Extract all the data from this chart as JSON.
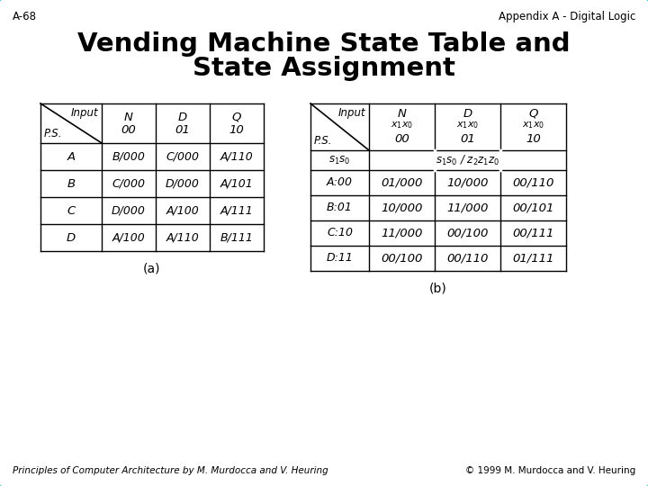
{
  "title_line1": "Vending Machine State Table and",
  "title_line2": "State Assignment",
  "header_left": "A-68",
  "header_right": "Appendix A - Digital Logic",
  "footer_left": "Principles of Computer Architecture by M. Murdocca and V. Heuring",
  "footer_right": "© 1999 M. Murdocca and V. Heuring",
  "table_a_label": "(a)",
  "table_b_label": "(b)",
  "bg_color": "#ffffff",
  "border_color": "#5bc8d0",
  "table_a": {
    "col_headers": [
      "N",
      "D",
      "Q"
    ],
    "col_subheaders": [
      "00",
      "01",
      "10"
    ],
    "row_headers": [
      "A",
      "B",
      "C",
      "D"
    ],
    "cells": [
      [
        "B/000",
        "C/000",
        "A/110"
      ],
      [
        "C/000",
        "D/000",
        "A/101"
      ],
      [
        "D/000",
        "A/100",
        "A/111"
      ],
      [
        "A/100",
        "A/110",
        "B/111"
      ]
    ]
  },
  "table_b": {
    "col_headers": [
      "N",
      "D",
      "Q"
    ],
    "col_subheaders_top": [
      "$x_1x_0$",
      "$x_1x_0$",
      "$x_1x_0$"
    ],
    "col_subheaders_bot": [
      "00",
      "01",
      "10"
    ],
    "row_headers": [
      "A:00",
      "B:01",
      "C:10",
      "D:11"
    ],
    "span_header": "$s_1s_0$ / $z_2z_1z_0$",
    "ps_label": "$s_1s_0$",
    "cells": [
      [
        "01/000",
        "10/000",
        "00/110"
      ],
      [
        "10/000",
        "11/000",
        "00/101"
      ],
      [
        "11/000",
        "00/100",
        "00/111"
      ],
      [
        "00/100",
        "00/110",
        "01/111"
      ]
    ]
  }
}
